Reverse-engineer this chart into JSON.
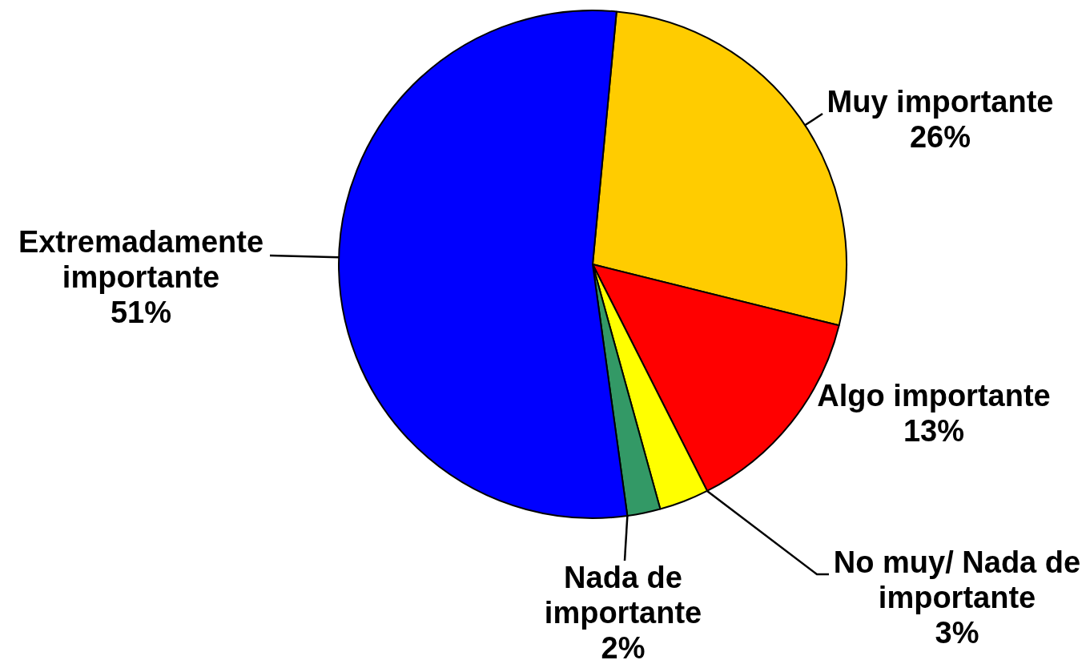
{
  "chart_data": {
    "type": "pie",
    "categories": [
      "Muy importante",
      "Algo importante",
      "No muy/ Nada de importante",
      "Nada de importante",
      "Extremadamente importante"
    ],
    "values": [
      26,
      13,
      3,
      2,
      51
    ],
    "colors": [
      "#ffcc00",
      "#ff0000",
      "#ffff00",
      "#339966",
      "#0000ff"
    ],
    "value_labels": [
      "26%",
      "13%",
      "3%",
      "2%",
      "51%"
    ]
  }
}
